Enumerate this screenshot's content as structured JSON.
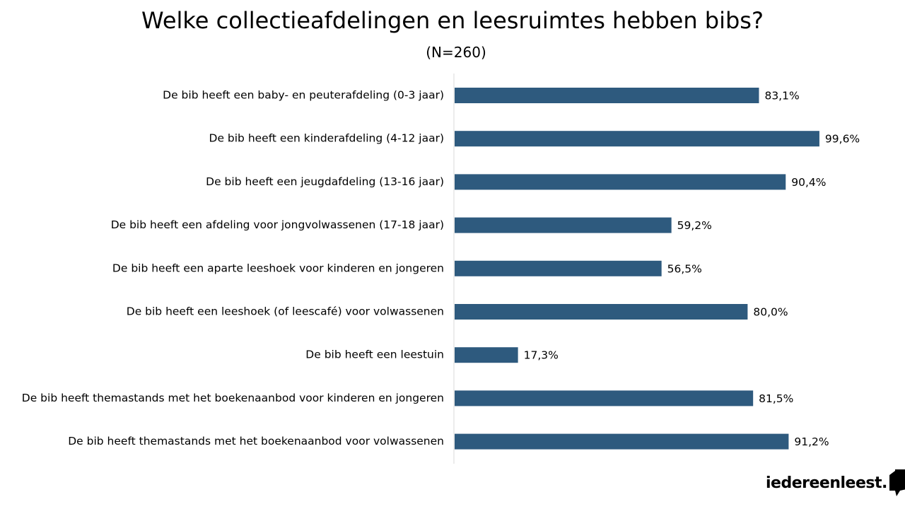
{
  "brand": {
    "logo_text": "iedereenleest.",
    "logo_icon": "book-shape-icon"
  },
  "colors": {
    "bar": "#2e5a7e",
    "axis": "#d9d9d9",
    "text": "#000000"
  },
  "chart_data": {
    "type": "bar",
    "orientation": "horizontal",
    "title": "Welke collectieafdelingen en leesruimtes hebben bibs?",
    "subtitle": "(N=260)",
    "xlabel": "",
    "ylabel": "",
    "xlim": [
      0,
      100
    ],
    "grid": false,
    "legend": "none",
    "value_suffix": "%",
    "categories": [
      "De bib heeft een baby- en peuterafdeling (0-3 jaar)",
      "De bib heeft een kinderafdeling (4-12 jaar)",
      "De bib heeft een jeugdafdeling (13-16 jaar)",
      "De bib heeft een afdeling voor jongvolwassenen (17-18 jaar)",
      "De bib heeft een aparte leeshoek voor kinderen en jongeren",
      "De bib heeft een leeshoek (of leescafé) voor volwassenen",
      "De bib heeft een leestuin",
      "De bib heeft themastands met het boekenaanbod voor kinderen en jongeren",
      "De bib heeft themastands met het boekenaanbod voor volwassenen"
    ],
    "values": [
      83.1,
      99.6,
      90.4,
      59.2,
      56.5,
      80.0,
      17.3,
      81.5,
      91.2
    ],
    "value_labels": [
      "83,1%",
      "99,6%",
      "90,4%",
      "59,2%",
      "56,5%",
      "80,0%",
      "17,3%",
      "81,5%",
      "91,2%"
    ]
  }
}
